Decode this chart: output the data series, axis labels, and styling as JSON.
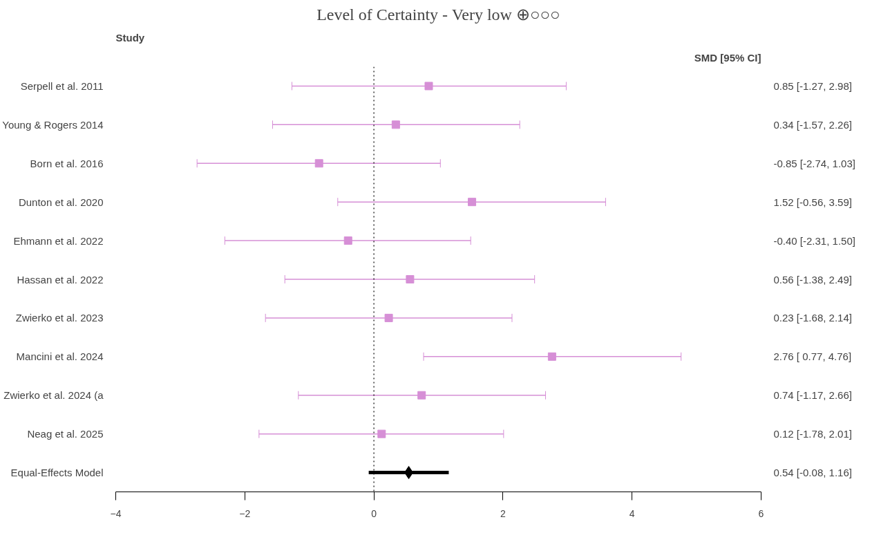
{
  "chart_data": {
    "type": "scatter",
    "orientation": "horizontal",
    "title": "Level of Certainty - Very low ⊕○○○",
    "ylabel": "Study",
    "annotations": [
      "SMD [95% CI]",
      "0.54 [-0.08, 1.16]"
    ],
    "categories": [
      "Serpell et al. 2011",
      "Young & Rogers 2014",
      "Born et al. 2016",
      "Dunton et al. 2020",
      "Ehmann et al. 2022",
      "Hassan et al. 2022",
      "Zwierko et al. 2023",
      "Mancini et al. 2024",
      "Zwierko et al. 2024 (a",
      "Neag et al. 2025",
      "Equal-Effects Model"
    ],
    "series": [
      {
        "color": "#d68fd6",
        "marker": "square",
        "values": [
          0.85,
          0.34,
          -0.85,
          1.52,
          -0.4,
          0.56,
          0.23,
          2.76,
          0.74,
          0.12,
          null
        ],
        "errors": [
          [
            -1.27,
            2.98
          ],
          [
            -1.57,
            2.26
          ],
          [
            -2.74,
            1.03
          ],
          [
            -0.56,
            3.59
          ],
          [
            -2.31,
            1.5
          ],
          [
            -1.38,
            2.49
          ],
          [
            -1.68,
            2.14
          ],
          [
            0.77,
            4.76
          ],
          [
            -1.17,
            2.66
          ],
          [
            -1.78,
            2.01
          ],
          null
        ],
        "value_labels": [
          "0.85 [-1.27, 2.98]",
          "0.34 [-1.57, 2.26]",
          "-0.85 [-2.74, 1.03]",
          "1.52 [-0.56, 3.59]",
          "-0.40 [-2.31, 1.50]",
          "0.56 [-1.38, 2.49]",
          "0.23 [-1.68, 2.14]",
          "2.76 [ 0.77, 4.76]",
          "0.74 [-1.17, 2.66]",
          "0.12 [-1.78, 2.01]",
          null
        ]
      },
      {
        "color": "#000000",
        "marker": "diamond",
        "values": [
          null,
          null,
          null,
          null,
          null,
          null,
          null,
          null,
          null,
          null,
          0.54
        ],
        "errors": [
          null,
          null,
          null,
          null,
          null,
          null,
          null,
          null,
          null,
          null,
          [
            -0.08,
            1.16
          ]
        ]
      }
    ],
    "xlim": [
      -4,
      6
    ],
    "xticks": [
      -4,
      -2,
      0,
      2,
      4,
      6
    ],
    "ref_lines": [
      {
        "axis": "x",
        "value": 0,
        "label": null,
        "color": "#000000",
        "line_style": "dotted"
      }
    ],
    "grid": false
  }
}
